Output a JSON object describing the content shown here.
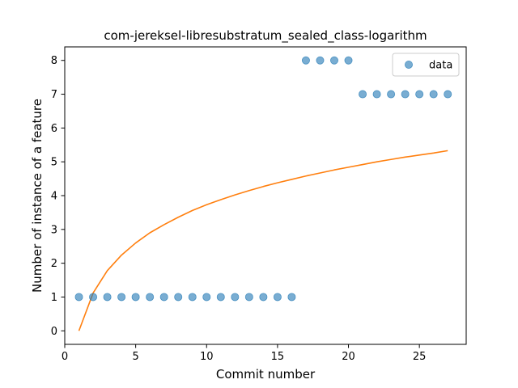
{
  "chart_data": {
    "type": "scatter",
    "title": "com-jereksel-libresubstratum_sealed_class-logarithm",
    "xlabel": "Commit number",
    "ylabel": "Number of instance of a feature",
    "xlim": [
      0.0,
      28.3
    ],
    "ylim": [
      -0.4,
      8.4
    ],
    "xticks": [
      0,
      5,
      10,
      15,
      20,
      25
    ],
    "yticks": [
      0,
      1,
      2,
      3,
      4,
      5,
      6,
      7,
      8
    ],
    "grid": false,
    "legend_position": "top-right",
    "series": [
      {
        "name": "data",
        "kind": "scatter",
        "color": "#1f77b4",
        "x": [
          1,
          2,
          3,
          4,
          5,
          6,
          7,
          8,
          9,
          10,
          11,
          12,
          13,
          14,
          15,
          16,
          17,
          18,
          19,
          20,
          21,
          22,
          23,
          24,
          25,
          26,
          27
        ],
        "y": [
          1,
          1,
          1,
          1,
          1,
          1,
          1,
          1,
          1,
          1,
          1,
          1,
          1,
          1,
          1,
          1,
          8,
          8,
          8,
          8,
          7,
          7,
          7,
          7,
          7,
          7,
          7
        ]
      },
      {
        "kind": "line",
        "color": "#ff7f0e",
        "x": [
          1,
          2,
          3,
          4,
          5,
          6,
          7,
          8,
          9,
          10,
          11,
          12,
          13,
          14,
          15,
          16,
          17,
          18,
          19,
          20,
          21,
          22,
          23,
          24,
          25,
          26,
          27
        ],
        "y": [
          0.0,
          1.12,
          1.78,
          2.24,
          2.6,
          2.9,
          3.14,
          3.36,
          3.56,
          3.73,
          3.88,
          4.02,
          4.15,
          4.27,
          4.38,
          4.48,
          4.58,
          4.67,
          4.76,
          4.84,
          4.92,
          5.0,
          5.07,
          5.14,
          5.2,
          5.26,
          5.33
        ]
      }
    ]
  }
}
